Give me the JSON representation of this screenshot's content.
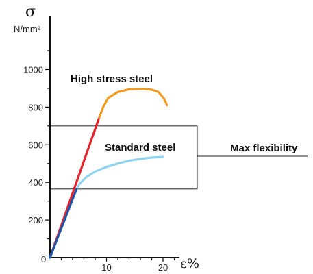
{
  "chart_data": {
    "type": "line",
    "y_axis": {
      "symbol": "σ",
      "unit": "N/mm²",
      "ticks": [
        0,
        200,
        400,
        600,
        800,
        1000
      ],
      "range": [
        0,
        1100
      ]
    },
    "x_axis": {
      "symbol": "ε%",
      "ticks": [
        0,
        10,
        20
      ],
      "range": [
        0,
        21.5
      ]
    },
    "colors": {
      "high_stress_elastic": "#e8202a",
      "high_stress_plastic": "#f39a1e",
      "standard_elastic": "#1b56a8",
      "standard_plastic": "#8fd3f0",
      "box": "#222222"
    },
    "series": [
      {
        "name": "High stress steel",
        "segments": [
          {
            "part": "elastic",
            "points": [
              [
                0,
                0
              ],
              [
                8.6,
                735
              ]
            ]
          },
          {
            "part": "plastic",
            "points": [
              [
                8.6,
                735
              ],
              [
                9.4,
                800
              ],
              [
                10.3,
                850
              ],
              [
                12,
                880
              ],
              [
                14,
                895
              ],
              [
                16,
                898
              ],
              [
                18,
                893
              ],
              [
                19.2,
                880
              ],
              [
                20.2,
                845
              ],
              [
                20.7,
                810
              ]
            ]
          }
        ]
      },
      {
        "name": "Standard steel",
        "segments": [
          {
            "part": "elastic",
            "points": [
              [
                0,
                0
              ],
              [
                4.7,
                365
              ]
            ]
          },
          {
            "part": "plastic",
            "points": [
              [
                4.7,
                365
              ],
              [
                5.3,
                395
              ],
              [
                6.5,
                430
              ],
              [
                8,
                458
              ],
              [
                10,
                482
              ],
              [
                12,
                500
              ],
              [
                14,
                515
              ],
              [
                16,
                525
              ],
              [
                18,
                532
              ],
              [
                20,
                535
              ]
            ]
          }
        ]
      }
    ],
    "annotation": {
      "label": "Max flexibility",
      "y_range": [
        365,
        700
      ],
      "x_start": 0
    }
  }
}
